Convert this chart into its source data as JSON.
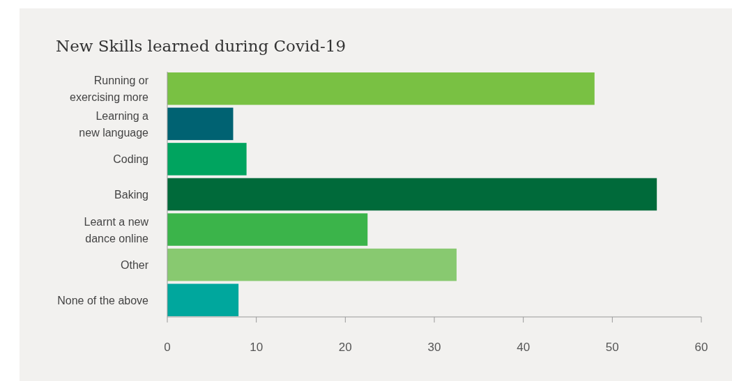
{
  "chart_data": {
    "type": "bar",
    "orientation": "horizontal",
    "title": "New Skills learned during Covid-19",
    "categories": [
      "Running or exercising more",
      "Learning a new language",
      "Coding",
      "Baking",
      "Learnt a new dance online",
      "Other",
      "None of the above"
    ],
    "values": [
      48,
      7.4,
      8.9,
      55,
      22.5,
      32.5,
      8
    ],
    "colors": [
      "#79c143",
      "#006272",
      "#00a45f",
      "#006a3a",
      "#3bb44a",
      "#88c970",
      "#00a79d"
    ],
    "xlim": [
      0,
      60
    ],
    "xticks": [
      0,
      10,
      20,
      30,
      40,
      50,
      60
    ],
    "grid": false
  }
}
